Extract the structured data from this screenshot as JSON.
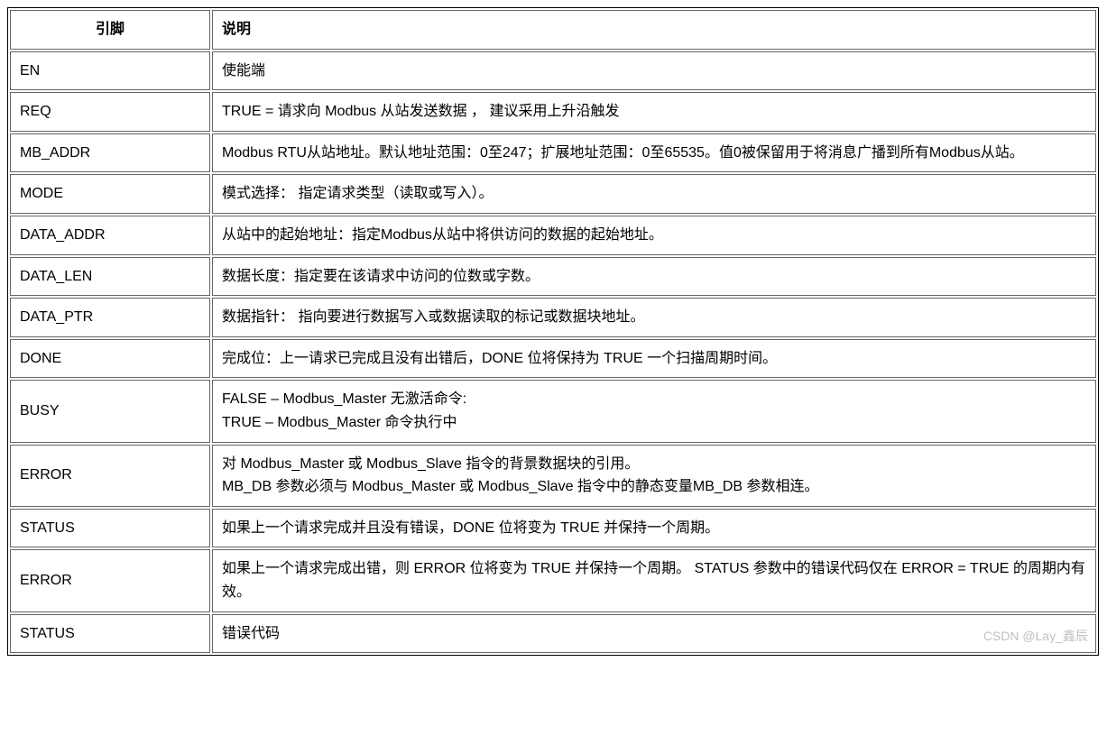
{
  "table": {
    "headers": {
      "pin": "引脚",
      "desc": "说明"
    },
    "rows": [
      {
        "pin": "EN",
        "desc": "使能端"
      },
      {
        "pin": "REQ",
        "desc": "TRUE = 请求向 Modbus 从站发送数据 ， 建议采用上升沿触发"
      },
      {
        "pin": "MB_ADDR",
        "desc": "Modbus RTU从站地址。默认地址范围：0至247；扩展地址范围：0至65535。值0被保留用于将消息广播到所有Modbus从站。"
      },
      {
        "pin": "MODE",
        "desc": "模式选择： 指定请求类型（读取或写入）。"
      },
      {
        "pin": "DATA_ADDR",
        "desc": "从站中的起始地址：指定Modbus从站中将供访问的数据的起始地址。"
      },
      {
        "pin": "DATA_LEN",
        "desc": "数据长度：指定要在该请求中访问的位数或字数。"
      },
      {
        "pin": "DATA_PTR",
        "desc": "数据指针： 指向要进行数据写入或数据读取的标记或数据块地址。"
      },
      {
        "pin": "DONE",
        "desc": "完成位：上一请求已完成且没有出错后，DONE 位将保持为 TRUE 一个扫描周期时间。"
      },
      {
        "pin": "BUSY",
        "desc": "FALSE – Modbus_Master 无激活命令:\nTRUE – Modbus_Master 命令执行中"
      },
      {
        "pin": "ERROR",
        "desc": "对 Modbus_Master 或 Modbus_Slave 指令的背景数据块的引用。\nMB_DB 参数必须与 Modbus_Master 或 Modbus_Slave 指令中的静态变量MB_DB 参数相连。"
      },
      {
        "pin": "STATUS",
        "desc": "如果上一个请求完成并且没有错误，DONE 位将变为 TRUE 并保持一个周期。"
      },
      {
        "pin": "ERROR",
        "desc": "如果上一个请求完成出错，则 ERROR 位将变为 TRUE 并保持一个周期。 STATUS 参数中的错误代码仅在 ERROR = TRUE 的周期内有效。"
      },
      {
        "pin": "STATUS",
        "desc": "错误代码"
      }
    ]
  },
  "watermark": "CSDN @Lay_鑫辰"
}
